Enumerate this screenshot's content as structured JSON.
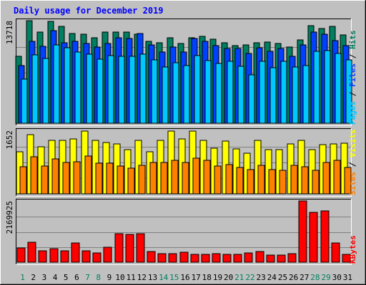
{
  "chart_data": {
    "type": "bar",
    "title": "Daily usage for December 2019",
    "categories": [
      "1",
      "2",
      "3",
      "4",
      "5",
      "6",
      "7",
      "8",
      "9",
      "10",
      "11",
      "12",
      "13",
      "14",
      "15",
      "16",
      "17",
      "18",
      "19",
      "20",
      "21",
      "22",
      "23",
      "24",
      "25",
      "26",
      "27",
      "28",
      "29",
      "30",
      "31"
    ],
    "weekend_days": [
      "1",
      "7",
      "8",
      "14",
      "15",
      "21",
      "22",
      "28",
      "29"
    ],
    "panels": [
      {
        "name": "pages-files-hits",
        "max_label": "13718",
        "ymax": 13718,
        "legend": [
          {
            "text": "Pages",
            "color": "#00c8ff"
          },
          {
            "text": " / ",
            "color": "#000000"
          },
          {
            "text": "Files",
            "color": "#0040ff"
          },
          {
            "text": " / ",
            "color": "#000000"
          },
          {
            "text": "Hits",
            "color": "#008060"
          }
        ],
        "series": [
          {
            "name": "Hits",
            "color": "#008060",
            "values": [
              9000,
              13800,
              12300,
              13700,
              13000,
              12100,
              12000,
              11500,
              12300,
              12300,
              12300,
              12000,
              11000,
              10800,
              11500,
              10700,
              11500,
              11700,
              11300,
              10800,
              10500,
              10600,
              10800,
              10900,
              10700,
              10300,
              11200,
              13100,
              12800,
              13000,
              11900
            ]
          },
          {
            "name": "Files",
            "color": "#0040ff",
            "values": [
              7800,
              11000,
              10400,
              12500,
              10800,
              11000,
              10700,
              10300,
              10700,
              11500,
              11400,
              12100,
              10600,
              9600,
              10300,
              9600,
              11400,
              11000,
              10500,
              10100,
              10100,
              9400,
              10200,
              9700,
              10100,
              9000,
              10600,
              12300,
              12000,
              11100,
              10500
            ]
          },
          {
            "name": "Pages",
            "color": "#00c8ff",
            "values": [
              5900,
              9200,
              8700,
              10600,
              10200,
              9600,
              9300,
              8600,
              9100,
              9000,
              9000,
              9300,
              8500,
              7600,
              8200,
              7800,
              9100,
              8400,
              8100,
              8300,
              7700,
              6500,
              8300,
              7500,
              8300,
              7600,
              7800,
              9700,
              9800,
              9400,
              8500
            ]
          }
        ]
      },
      {
        "name": "sites-visits",
        "max_label": "1652",
        "ymax": 1652,
        "legend": [
          {
            "text": "Sites",
            "color": "#ff8000"
          },
          {
            "text": " / ",
            "color": "#000000"
          },
          {
            "text": "Visits",
            "color": "#ffff00"
          }
        ],
        "series": [
          {
            "name": "Visits",
            "color": "#ffff00",
            "values": [
              1100,
              1560,
              1230,
              1400,
              1400,
              1450,
              1650,
              1400,
              1350,
              1310,
              1160,
              1400,
              1110,
              1400,
              1650,
              1450,
              1650,
              1400,
              1200,
              1390,
              1190,
              1070,
              1400,
              1160,
              1160,
              1320,
              1400,
              1160,
              1290,
              1310,
              1340
            ]
          },
          {
            "name": "Sites",
            "color": "#ff8000",
            "values": [
              720,
              980,
              730,
              920,
              830,
              840,
              1000,
              800,
              810,
              730,
              680,
              750,
              820,
              830,
              890,
              820,
              930,
              880,
              730,
              770,
              690,
              640,
              760,
              640,
              620,
              760,
              720,
              620,
              830,
              890,
              690
            ]
          }
        ]
      },
      {
        "name": "kbytes",
        "max_label": "2169925",
        "ymax": 2169925,
        "legend": [
          {
            "text": "KBytes",
            "color": "#ff0000"
          }
        ],
        "series": [
          {
            "name": "KBytes",
            "color": "#ff0000",
            "values": [
              510000,
              720000,
              400000,
              480000,
              420000,
              690000,
              400000,
              340000,
              530000,
              1020000,
              990000,
              1030000,
              380000,
              300000,
              310000,
              350000,
              290000,
              290000,
              310000,
              280000,
              290000,
              320000,
              380000,
              250000,
              260000,
              300000,
              2200000,
              1790000,
              1830000,
              680000,
              290000
            ]
          }
        ]
      }
    ]
  }
}
